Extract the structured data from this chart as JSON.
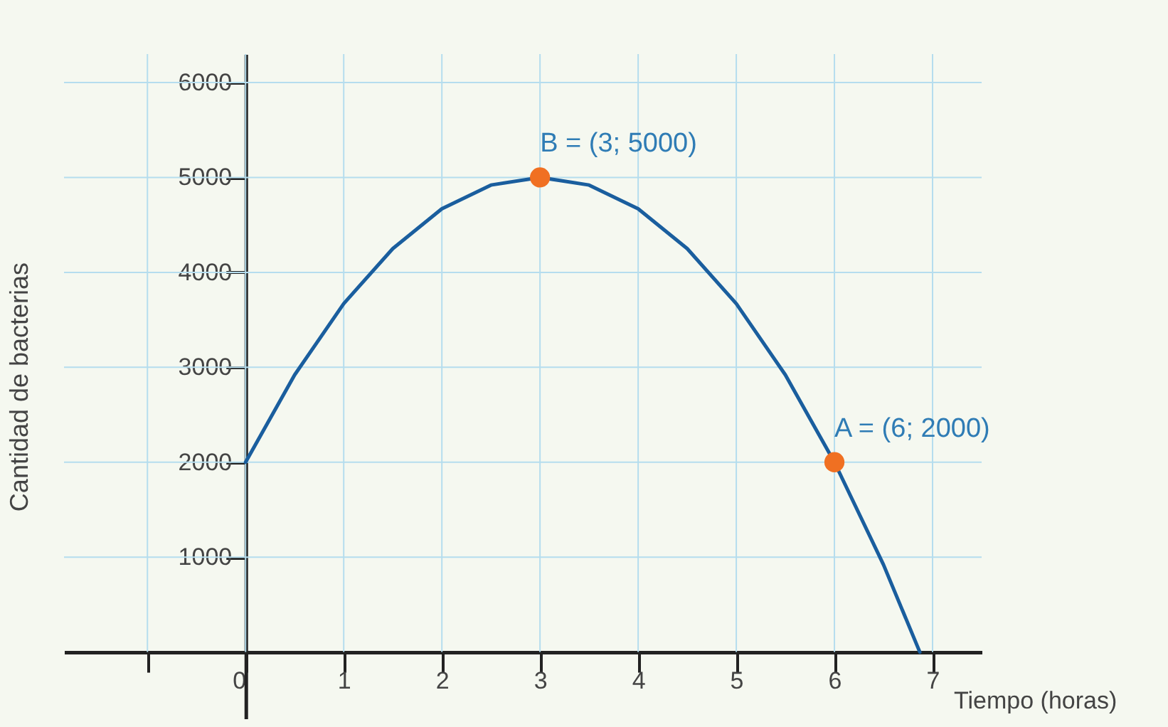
{
  "chart_data": {
    "type": "line",
    "xlabel": "Tiempo (horas)",
    "ylabel": "Cantidad de bacterias",
    "xlim": [
      -1.85,
      7.5
    ],
    "ylim": [
      -700,
      6300
    ],
    "xticks": [
      {
        "value": -1,
        "label": null
      },
      0,
      1,
      2,
      3,
      4,
      5,
      6,
      7
    ],
    "yticks": [
      1000,
      2000,
      3000,
      4000,
      5000,
      6000
    ],
    "grid": true,
    "series": [
      {
        "color": "#1a5e9e",
        "x": [
          0,
          0.5,
          1,
          1.5,
          2,
          2.5,
          3,
          3.5,
          4,
          4.5,
          5,
          5.5,
          6,
          6.5,
          6.87
        ],
        "values": [
          2000,
          2920,
          3670,
          4250,
          4670,
          4920,
          5000,
          4920,
          4670,
          4250,
          3670,
          2920,
          2000,
          920,
          0
        ]
      },
      {
        "type": "scatter",
        "color": "#f07022",
        "marker": "circle",
        "x": [
          3,
          6
        ],
        "values": [
          5000,
          2000
        ]
      }
    ],
    "annotations": [
      {
        "text": "B = (3; 5000)",
        "x": 3,
        "y": 5000
      },
      {
        "text": "A = (6; 2000)",
        "x": 6,
        "y": 2000
      }
    ]
  }
}
